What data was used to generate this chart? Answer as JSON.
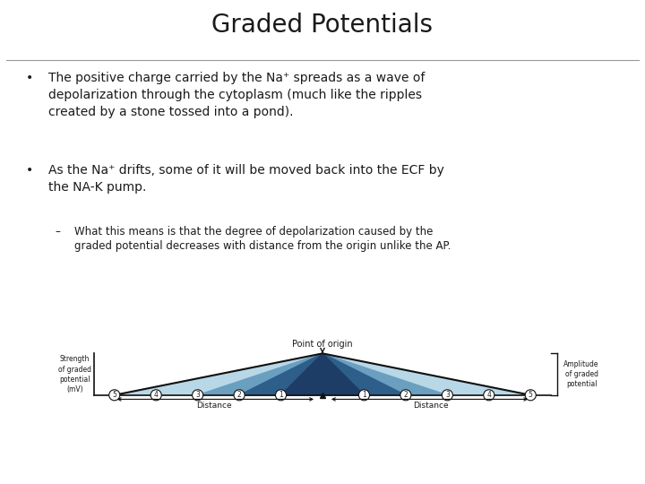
{
  "title": "Graded Potentials",
  "bullet1": "The positive charge carried by the Na⁺ spreads as a wave of\ndepolarization through the cytoplasm (much like the ripples\ncreated by a stone tossed into a pond).",
  "bullet2": "As the Na⁺ drifts, some of it will be moved back into the ECF by\nthe NA-K pump.",
  "sub": "What this means is that the degree of depolarization caused by the\ngraded potential decreases with distance from the origin unlike the AP.",
  "point_of_origin": "Point of origin",
  "strength_label": "Strength\nof graded\npotential\n(mV)",
  "amplitude_label": "Amplitude\nof graded\npotential",
  "distance_left": "Distance",
  "distance_right": "Distance",
  "tick_labels": [
    "5",
    "4",
    "3",
    "2",
    "1",
    "1",
    "2",
    "3",
    "4",
    "5"
  ],
  "tick_positions": [
    -5,
    -4,
    -3,
    -2,
    -1,
    1,
    2,
    3,
    4,
    5
  ],
  "color_outer": "#b8d8e8",
  "color_mid": "#6a9fc0",
  "color_inner": "#2e5f8a",
  "outline_color": "#111111",
  "background": "#ffffff",
  "title_fontsize": 20,
  "bullet_fontsize": 10,
  "sub_fontsize": 8.5
}
